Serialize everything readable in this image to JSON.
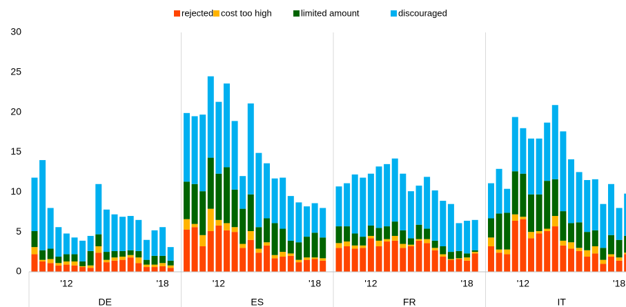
{
  "chart_data": {
    "type": "bar",
    "stacked": true,
    "legend": "top",
    "ylim": [
      0,
      30
    ],
    "yticks": [
      0,
      5,
      10,
      15,
      20,
      25,
      30
    ],
    "groups": [
      "DE",
      "ES",
      "FR",
      "IT"
    ],
    "categories": [
      null,
      null,
      null,
      null,
      "'12",
      null,
      null,
      null,
      null,
      null,
      null,
      null,
      null,
      null,
      null,
      null,
      "'18",
      null,
      null,
      null,
      null,
      null,
      "'12",
      null,
      null,
      null,
      null,
      null,
      null,
      null,
      null,
      null,
      null,
      null,
      "'18",
      null,
      null,
      null,
      null,
      null,
      "'12",
      null,
      null,
      null,
      null,
      null,
      null,
      null,
      null,
      null,
      null,
      null,
      "'18",
      null,
      null,
      null,
      null,
      null,
      "'12",
      null,
      null,
      null,
      null,
      null,
      null,
      null,
      null,
      null,
      null,
      null,
      "'18",
      null
    ],
    "series": [
      {
        "name": "rejected",
        "color": "#ff4500",
        "values": [
          2.2,
          1.3,
          1.1,
          0.8,
          0.9,
          0.8,
          0.6,
          0.5,
          2.4,
          1.2,
          1.4,
          1.5,
          1.8,
          1.1,
          0.6,
          0.6,
          0.7,
          0.5,
          5.3,
          5.6,
          3.2,
          5.1,
          5.8,
          5.2,
          5.0,
          3.0,
          4.0,
          2.4,
          3.3,
          1.7,
          1.9,
          2.0,
          1.2,
          1.5,
          1.6,
          1.4,
          3.0,
          3.2,
          2.9,
          3.0,
          4.2,
          3.2,
          3.8,
          3.9,
          3.0,
          3.2,
          3.9,
          3.6,
          2.7,
          1.9,
          1.5,
          1.6,
          1.4,
          2.3,
          3.2,
          2.4,
          2.2,
          6.4,
          6.6,
          4.2,
          4.8,
          5.1,
          5.7,
          3.3,
          2.9,
          2.6,
          1.9,
          2.3,
          1.0,
          1.9,
          1.4,
          2.2
        ]
      },
      {
        "name": "cost too high",
        "color": "#ffb400",
        "values": [
          0.9,
          0.2,
          0.5,
          0.3,
          0.4,
          0.5,
          0.1,
          0.3,
          0.8,
          0.3,
          0.4,
          0.4,
          0.3,
          0.7,
          0.3,
          0.3,
          0.4,
          0.3,
          1.3,
          0.4,
          1.4,
          2.8,
          0.7,
          0.9,
          0.6,
          0.5,
          1.1,
          0.5,
          0.4,
          0.4,
          0.6,
          0.3,
          0.3,
          0.3,
          0.2,
          0.3,
          0.6,
          0.6,
          0.4,
          0.3,
          0.3,
          0.7,
          0.3,
          0.6,
          0.5,
          0.2,
          0.2,
          0.5,
          0.3,
          0.3,
          0.1,
          0.1,
          0.4,
          0.2,
          1.1,
          0.4,
          0.6,
          0.8,
          0.3,
          0.8,
          0.3,
          0.3,
          1.3,
          0.6,
          0.8,
          0.4,
          0.8,
          0.9,
          0.5,
          0.3,
          0.4,
          0.2
        ]
      },
      {
        "name": "limited amount",
        "color": "#006400",
        "values": [
          2.0,
          1.2,
          1.3,
          0.8,
          0.9,
          0.9,
          0.6,
          1.8,
          1.5,
          1.0,
          0.8,
          0.7,
          0.6,
          0.8,
          0.6,
          1.1,
          0.9,
          0.6,
          4.7,
          5.0,
          5.5,
          6.4,
          5.8,
          7.0,
          4.7,
          4.4,
          4.6,
          2.7,
          3.0,
          4.0,
          2.9,
          1.6,
          2.2,
          2.6,
          3.1,
          2.6,
          2.1,
          1.9,
          1.5,
          1.1,
          1.3,
          1.6,
          1.6,
          1.8,
          1.7,
          0.8,
          1.8,
          1.3,
          0.9,
          1.0,
          0.9,
          0.9,
          0.5,
          0.2,
          2.4,
          4.5,
          4.6,
          5.4,
          5.4,
          4.7,
          4.6,
          6.0,
          4.6,
          3.7,
          2.4,
          3.2,
          2.3,
          2.0,
          1.5,
          2.4,
          2.2,
          2.1
        ]
      },
      {
        "name": "discouraged",
        "color": "#00b0f0",
        "values": [
          6.7,
          11.3,
          5.1,
          3.7,
          2.6,
          2.1,
          2.6,
          1.9,
          6.3,
          5.3,
          4.6,
          4.3,
          4.3,
          3.9,
          2.5,
          3.2,
          3.6,
          1.7,
          8.6,
          8.5,
          9.6,
          10.2,
          9.0,
          10.5,
          8.6,
          4.1,
          11.4,
          9.3,
          6.9,
          5.6,
          6.4,
          5.6,
          5.0,
          3.8,
          3.7,
          3.7,
          5.0,
          5.4,
          7.4,
          7.4,
          6.5,
          7.7,
          7.8,
          7.9,
          7.1,
          5.9,
          4.9,
          6.5,
          6.3,
          5.7,
          6.0,
          3.5,
          4.1,
          3.8,
          4.4,
          5.6,
          3.0,
          6.8,
          5.7,
          7.0,
          7.0,
          7.3,
          9.3,
          10.0,
          8.0,
          6.3,
          6.5,
          6.4,
          5.5,
          6.4,
          4.0,
          5.3
        ]
      }
    ]
  }
}
